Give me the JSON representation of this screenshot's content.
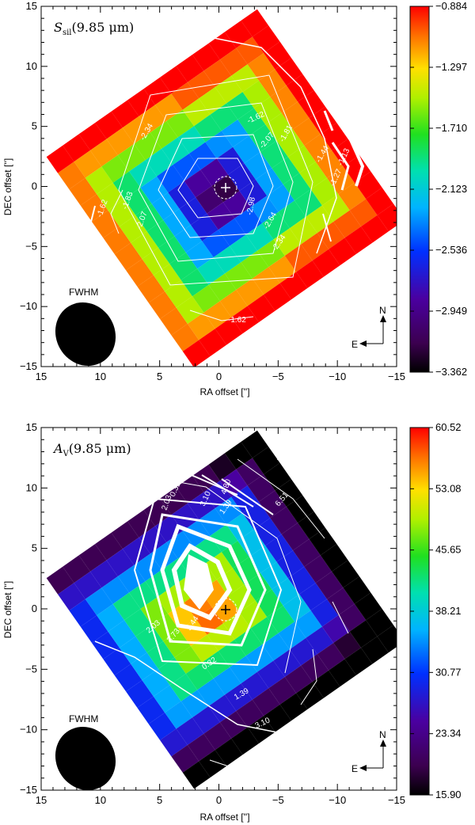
{
  "chart_data": [
    {
      "type": "heatmap",
      "title": "S_sil(9.85 μm)",
      "title_main": "S",
      "title_sub": "sil",
      "title_rest": "(9.85 μm)",
      "xlabel": "RA offset ['']",
      "ylabel": "DEC offset ['']",
      "xlim": [
        15,
        -15
      ],
      "ylim": [
        -15,
        15
      ],
      "xticks": [
        15,
        10,
        5,
        0,
        -5,
        -10,
        -15
      ],
      "yticks": [
        -15,
        -10,
        -5,
        0,
        5,
        10,
        15
      ],
      "colorbar": {
        "range": [
          -3.362,
          -0.884
        ],
        "tick_labels": [
          "-0.884",
          "-1.297",
          "-1.710",
          "-2.123",
          "-2.536",
          "-2.949",
          "-3.362"
        ],
        "colormap": "rainbow (black-purple-blue-cyan-green-yellow-red)"
      },
      "contour_labels": [
        "-1.62",
        "-2.34",
        "-2.07",
        "-1.81",
        "-1.44",
        "-1.13",
        "-1.27",
        "-1.62",
        "-1.83",
        "-2.07",
        "-2.98",
        "-2.64",
        "-2.34",
        "-1.62"
      ],
      "beam_label": "FWHM",
      "compass": {
        "north": "N",
        "east": "E"
      }
    },
    {
      "type": "heatmap",
      "title": "A_V(9.85 μm)",
      "title_main": "A",
      "title_sub": "V",
      "title_rest": "(9.85 μm)",
      "xlabel": "RA offset ['']",
      "ylabel": "DEC offset ['']",
      "xlim": [
        15,
        -15
      ],
      "ylim": [
        -15,
        15
      ],
      "xticks": [
        15,
        10,
        5,
        0,
        -5,
        -10,
        -15
      ],
      "yticks": [
        -15,
        -10,
        -5,
        0,
        5,
        10,
        15
      ],
      "colorbar": {
        "range": [
          15.9,
          60.52
        ],
        "tick_labels": [
          "60.52",
          "53.08",
          "45.65",
          "38.21",
          "30.77",
          "23.34",
          "15.90"
        ],
        "colormap": "rainbow (black-purple-blue-cyan-green-yellow-red)"
      },
      "contour_labels": [
        "4.80",
        "6.51",
        "8.22",
        "3.10",
        "1.39",
        "0.32",
        "2.03",
        "5.44",
        "3.73",
        "2.03",
        "0.32",
        "1.39",
        "3.10"
      ],
      "beam_label": "FWHM",
      "compass": {
        "north": "N",
        "east": "E"
      }
    }
  ]
}
